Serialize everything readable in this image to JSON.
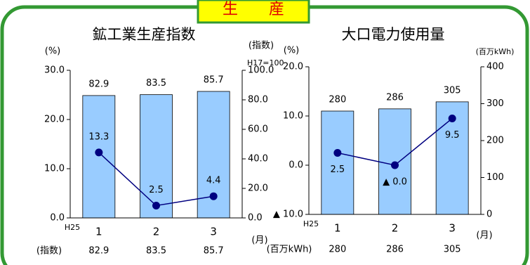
{
  "header": {
    "title": "生　　産"
  },
  "chart_data": [
    {
      "type": "combo",
      "title": "鉱工業生産指数",
      "ylabel": "(%)",
      "y2label": "(指数)",
      "note": "H17=100",
      "x_prefix": "H25",
      "x_unit": "(月)",
      "table_label": "(指数)",
      "categories": [
        "1",
        "2",
        "3"
      ],
      "ylim": [
        0,
        30
      ],
      "yticks": [
        {
          "value": 0,
          "label": "0.0"
        },
        {
          "value": 10,
          "label": "10.0"
        },
        {
          "value": 20,
          "label": "20.0"
        },
        {
          "value": 30,
          "label": "30.0"
        }
      ],
      "y2lim": [
        0,
        100
      ],
      "y2ticks": [
        {
          "value": 0,
          "label": "0.0"
        },
        {
          "value": 20,
          "label": "20.0"
        },
        {
          "value": 40,
          "label": "40.0"
        },
        {
          "value": 60,
          "label": "60.0"
        },
        {
          "value": 80,
          "label": "80.0"
        },
        {
          "value": 100,
          "label": "100.0"
        }
      ],
      "series": [
        {
          "type": "bar",
          "axis": "y2",
          "color": "#99ccff",
          "values": [
            82.9,
            83.5,
            85.7
          ]
        },
        {
          "type": "line",
          "color": "#000080",
          "values": [
            13.3,
            2.5,
            4.4
          ]
        }
      ]
    },
    {
      "type": "combo",
      "title": "大口電力使用量",
      "ylabel": "(%)",
      "y2label": "(百万kWh)",
      "x_prefix": "H25",
      "x_unit": "(月)",
      "table_label": "(百万kWh)",
      "categories": [
        "1",
        "2",
        "3"
      ],
      "ylim": [
        -10,
        20
      ],
      "yticks": [
        {
          "value": -10,
          "label": "▲ 10.0"
        },
        {
          "value": 0,
          "label": "0.0"
        },
        {
          "value": 10,
          "label": "10.0"
        },
        {
          "value": 20,
          "label": "20.0"
        }
      ],
      "y2lim": [
        0,
        400
      ],
      "y2ticks": [
        0,
        100,
        200,
        300,
        400
      ],
      "series": [
        {
          "type": "bar",
          "axis": "y2",
          "color": "#99ccff",
          "values": [
            280,
            286,
            305
          ]
        },
        {
          "type": "line",
          "color": "#000080",
          "values": [
            2.5,
            0,
            9.5
          ],
          "value_labels": [
            "2.5",
            "▲ 0.0",
            "9.5"
          ]
        }
      ]
    }
  ]
}
